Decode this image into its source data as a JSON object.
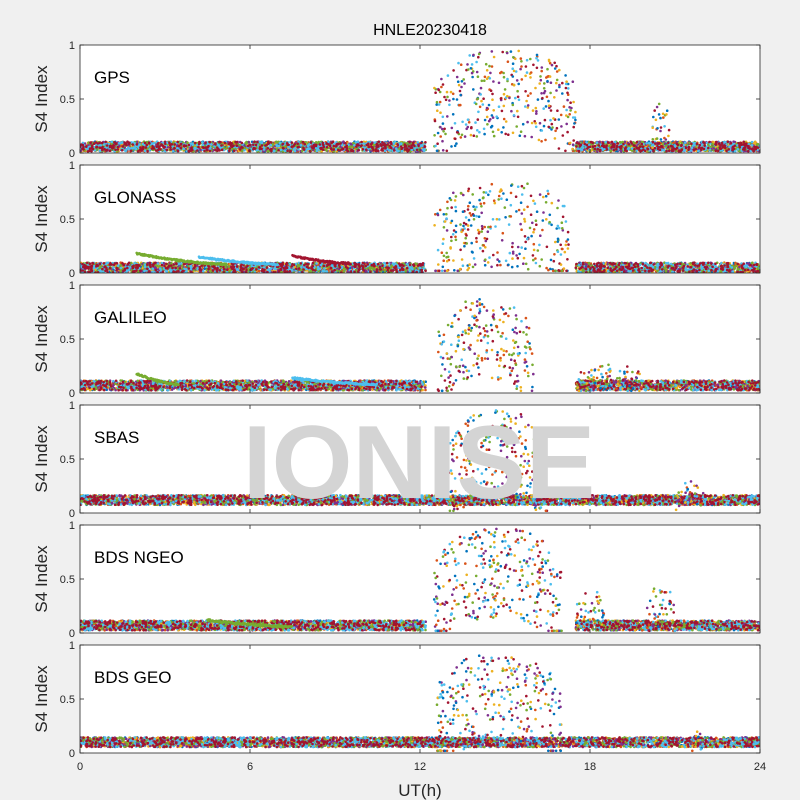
{
  "chart_data": {
    "type": "scatter",
    "title": "HNLE20230418",
    "xlabel": "UT(h)",
    "ylabel": "S4 Index",
    "xlim": [
      0,
      24
    ],
    "xticks": [
      "0",
      "6",
      "12",
      "18",
      "24"
    ],
    "ylim": [
      0,
      1
    ],
    "yticks": [
      "0",
      "0.5",
      "1"
    ],
    "grid": false,
    "watermark": "IONISE",
    "series_colors": [
      "#0072bd",
      "#d95319",
      "#edb120",
      "#7e2f8e",
      "#77ac30",
      "#4dbeee",
      "#a2142f"
    ],
    "panels": [
      {
        "name": "GPS",
        "background": [
          [
            0,
            12.2,
            0.06
          ],
          [
            17.5,
            24,
            0.06
          ]
        ],
        "bursts": [
          [
            12.5,
            17.5,
            0.55,
            0.4
          ],
          [
            20.2,
            20.8,
            0.3,
            0.2
          ]
        ]
      },
      {
        "name": "GLONASS",
        "background": [
          [
            0,
            12.2,
            0.05
          ],
          [
            17.5,
            24,
            0.05
          ]
        ],
        "arcs": [
          [
            2.0,
            5.2,
            0.18,
            0.08
          ],
          [
            4.2,
            7.0,
            0.15,
            0.08
          ],
          [
            7.5,
            9.5,
            0.16,
            0.09
          ]
        ],
        "bursts": [
          [
            12.5,
            17.3,
            0.45,
            0.4
          ]
        ]
      },
      {
        "name": "GALILEO",
        "background": [
          [
            0,
            12.2,
            0.07
          ],
          [
            17.5,
            24,
            0.07
          ]
        ],
        "arcs": [
          [
            2.0,
            3.5,
            0.18,
            0.08
          ],
          [
            7.5,
            10.5,
            0.14,
            0.08
          ]
        ],
        "bursts": [
          [
            12.6,
            16.0,
            0.5,
            0.38
          ],
          [
            17.5,
            19.8,
            0.15,
            0.12
          ]
        ]
      },
      {
        "name": "SBAS",
        "background": [
          [
            0,
            24,
            0.12
          ]
        ],
        "bursts": [
          [
            13.0,
            16.5,
            0.55,
            0.4
          ],
          [
            21.0,
            22.0,
            0.2,
            0.1
          ]
        ]
      },
      {
        "name": "BDS NGEO",
        "background": [
          [
            0,
            12.2,
            0.07
          ],
          [
            17.5,
            24,
            0.07
          ]
        ],
        "arcs": [
          [
            4.5,
            7.5,
            0.12,
            0.06
          ]
        ],
        "bursts": [
          [
            12.5,
            17.0,
            0.55,
            0.42
          ],
          [
            17.5,
            18.5,
            0.25,
            0.15
          ],
          [
            20.0,
            21.0,
            0.25,
            0.2
          ]
        ]
      },
      {
        "name": "BDS GEO",
        "background": [
          [
            0,
            24,
            0.1
          ]
        ],
        "bursts": [
          [
            12.6,
            17.0,
            0.5,
            0.42
          ],
          [
            21.6,
            22.0,
            0.12,
            0.08
          ]
        ]
      }
    ]
  }
}
